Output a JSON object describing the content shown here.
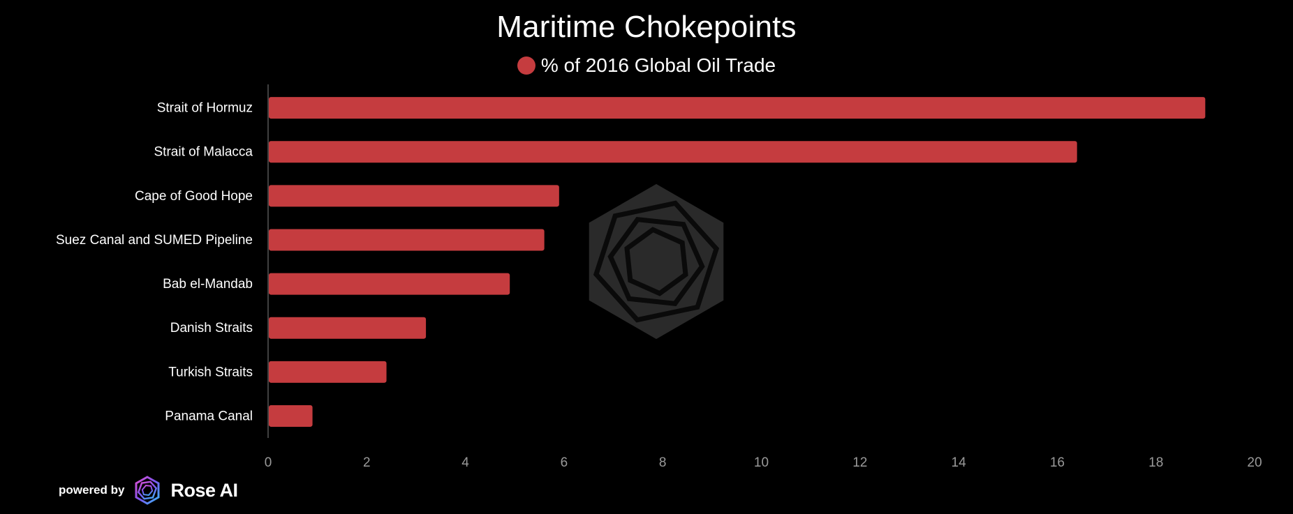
{
  "colors": {
    "bar": "#c53c3f",
    "axis_text": "#9a9a9a",
    "watermark": "#2a2a2a"
  },
  "chart_data": {
    "type": "bar",
    "orientation": "horizontal",
    "title": "Maritime Chokepoints",
    "categories": [
      "Strait of Hormuz",
      "Strait of Malacca",
      "Cape of Good Hope",
      "Suez Canal and SUMED Pipeline",
      "Bab el-Mandab",
      "Danish Straits",
      "Turkish Straits",
      "Panama Canal"
    ],
    "series": [
      {
        "name": "% of 2016 Global Oil Trade",
        "values": [
          19.0,
          16.4,
          5.9,
          5.6,
          4.9,
          3.2,
          2.4,
          0.9
        ]
      }
    ],
    "xlim": [
      0,
      20
    ],
    "xticks": [
      0,
      2,
      4,
      6,
      8,
      10,
      12,
      14,
      16,
      18,
      20
    ],
    "legend_position": "top-center",
    "grid": false
  },
  "footer": {
    "powered_by": "powered by",
    "brand": "Rose AI"
  }
}
